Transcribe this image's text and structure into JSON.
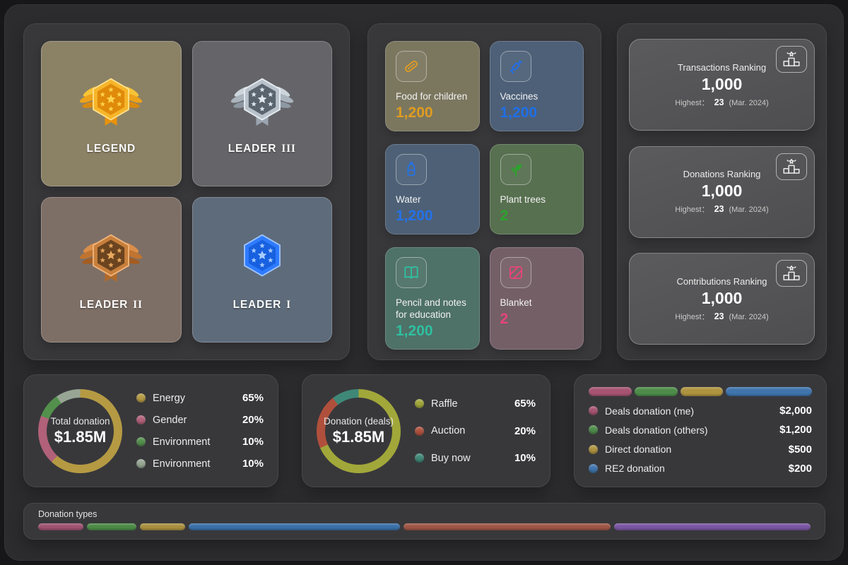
{
  "badges": {
    "items": [
      {
        "name": "LEGEND",
        "tier": "",
        "card_color": "#8b8266",
        "badge": {
          "wings": true,
          "feathers": [
            "#f7c437",
            "#eda21a",
            "#d98a10"
          ],
          "hex_outer": "#f6b52a",
          "hex_stroke": "#ffe08a",
          "hex_inner": "#e08a0a",
          "star": "#ffd34d",
          "tail": "#e8920c"
        }
      },
      {
        "name": "LEADER",
        "tier": "III",
        "card_color": "#656569",
        "badge": {
          "wings": true,
          "feathers": [
            "#cdd5dc",
            "#aab4bd",
            "#8d98a2"
          ],
          "hex_outer": "#b9c2cb",
          "hex_stroke": "#e6ecf1",
          "hex_inner": "#5a646e",
          "star": "#e3eaf0",
          "tail": "#9aa5af"
        }
      },
      {
        "name": "LEADER",
        "tier": "II",
        "card_color": "#7e6f66",
        "badge": {
          "wings": true,
          "feathers": [
            "#d98e4a",
            "#c0742f",
            "#a35d22"
          ],
          "hex_outer": "#c87f3c",
          "hex_stroke": "#f0b37a",
          "hex_inner": "#6b441f",
          "star": "#e8a95f",
          "tail": "#b06a2a"
        }
      },
      {
        "name": "LEADER",
        "tier": "I",
        "card_color": "#5e6b7a",
        "badge": {
          "wings": false,
          "feathers": [],
          "hex_outer": "#2f7bff",
          "hex_stroke": "#9cc4ff",
          "hex_inner": "#1760e0",
          "star": "#a9cdff",
          "tail": ""
        }
      }
    ]
  },
  "categories": {
    "items": [
      {
        "label": "Food for children",
        "value": "1,200",
        "accent": "#e09c20",
        "bg": "#7b775f",
        "icon": "food-icon"
      },
      {
        "label": "Vaccines",
        "value": "1,200",
        "accent": "#1f6fe8",
        "bg": "#4d6078",
        "icon": "syringe-icon"
      },
      {
        "label": "Water",
        "value": "1,200",
        "accent": "#2472e8",
        "bg": "#4d6076",
        "icon": "water-bottle-icon"
      },
      {
        "label": "Plant trees",
        "value": "2",
        "accent": "#2da32d",
        "bg": "#577050",
        "icon": "plant-icon"
      },
      {
        "label": "Pencil and notes for education",
        "value": "1,200",
        "accent": "#2fbfa0",
        "bg": "#4e7168",
        "icon": "notebook-icon"
      },
      {
        "label": "Blanket",
        "value": "2",
        "accent": "#e8447a",
        "bg": "#745f66",
        "icon": "blanket-icon"
      }
    ]
  },
  "rankings": {
    "icon": "podium-icon",
    "items": [
      {
        "title": "Transactions Ranking",
        "value": "1,000",
        "highest_label": "Highest：",
        "highest_value": "23",
        "highest_period": "(Mar. 2024)"
      },
      {
        "title": "Donations Ranking",
        "value": "1,000",
        "highest_label": "Highest：",
        "highest_value": "23",
        "highest_period": "(Mar. 2024)"
      },
      {
        "title": "Contributions Ranking",
        "value": "1,000",
        "highest_label": "Highest：",
        "highest_value": "23",
        "highest_period": "(Mar. 2024)"
      }
    ]
  },
  "chart_data": [
    {
      "type": "pie",
      "donut": true,
      "legend_position": "right",
      "title": "Total donation",
      "center_value": "$1.85M",
      "labels": [
        "Energy",
        "Gender",
        "Environment",
        "Environment"
      ],
      "values": [
        65,
        20,
        10,
        10
      ],
      "unit": "%",
      "display": [
        "65%",
        "20%",
        "10%",
        "10%"
      ],
      "colors": [
        "#b59a43",
        "#b16179",
        "#53904c",
        "#97a694"
      ]
    },
    {
      "type": "pie",
      "donut": true,
      "legend_position": "right",
      "title": "Donation (deals)",
      "center_value": "$1.85M",
      "labels": [
        "Raffle",
        "Auction",
        "Buy now"
      ],
      "values": [
        65,
        20,
        10
      ],
      "unit": "%",
      "display": [
        "65%",
        "20%",
        "10%"
      ],
      "colors": [
        "#a2a73a",
        "#b0503c",
        "#3f8878"
      ]
    },
    {
      "type": "bar",
      "variant": "stacked-horizontal",
      "labels": [
        "Deals donation (me)",
        "Deals donation (others)",
        "Direct donation",
        "RE2 donation"
      ],
      "values": [
        2000,
        1200,
        500,
        200
      ],
      "display": [
        "$2,000",
        "$1,200",
        "$500",
        "$200"
      ],
      "segments_pct": [
        20,
        20,
        20,
        40
      ],
      "colors": [
        "#a65472",
        "#4e8c4a",
        "#af9440",
        "#3f74ad"
      ]
    },
    {
      "type": "bar",
      "variant": "stacked-horizontal",
      "title": "Donation types",
      "segments_pct": [
        6,
        6.5,
        6,
        28,
        27.5,
        26
      ],
      "colors": [
        "#9e5270",
        "#4c8a46",
        "#a89040",
        "#3a70a8",
        "#9e5546",
        "#7a56a2"
      ]
    }
  ]
}
